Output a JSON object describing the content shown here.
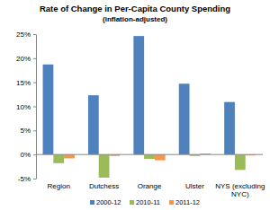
{
  "chart_data": {
    "type": "bar",
    "title": "Rate of Change in Per-Capita County Spending",
    "subtitle": "(inflation-adjusted)",
    "categories": [
      "Region",
      "Dutchess",
      "Orange",
      "Ulster",
      "NYS (excluding NYC)"
    ],
    "series": [
      {
        "name": "2000-12",
        "color": "#4f81bd",
        "values": [
          18.7,
          12.3,
          24.6,
          14.7,
          10.9
        ]
      },
      {
        "name": "2010-11",
        "color": "#9bbb59",
        "values": [
          -1.8,
          -4.8,
          -0.9,
          -0.3,
          -3.2
        ]
      },
      {
        "name": "2011-12",
        "color": "#f79646",
        "values": [
          -0.8,
          -0.3,
          -1.2,
          0.2,
          -0.2
        ]
      }
    ],
    "ylim": [
      -5,
      25
    ],
    "yticks": [
      {
        "value": -5,
        "label": "-5%"
      },
      {
        "value": 0,
        "label": "0%"
      },
      {
        "value": 5,
        "label": "5%"
      },
      {
        "value": 10,
        "label": "10%"
      },
      {
        "value": 15,
        "label": "15%"
      },
      {
        "value": 20,
        "label": "20%"
      },
      {
        "value": 25,
        "label": "25%"
      }
    ],
    "grid": false,
    "legend": "bottom"
  }
}
